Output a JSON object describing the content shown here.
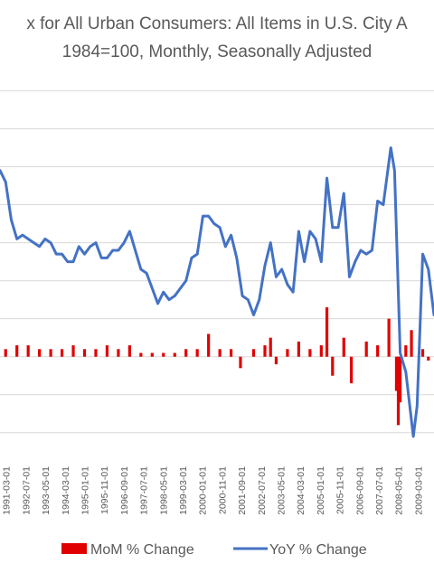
{
  "chart_data": {
    "type": "bar+line",
    "title_lines": [
      "x for All Urban Consumers: All Items in U.S. City A",
      "1984=100, Monthly, Seasonally Adjusted"
    ],
    "xlabel": "",
    "ylabel": "",
    "grid": true,
    "legend_position": "bottom",
    "ylim": [
      -2.6,
      7.2
    ],
    "x_tick_labels": [
      "1991-03-01",
      "1992-07-01",
      "1993-05-01",
      "1994-03-01",
      "1995-01-01",
      "1995-11-01",
      "1996-09-01",
      "1997-07-01",
      "1998-05-01",
      "1999-03-01",
      "2000-01-01",
      "2000-11-01",
      "2001-09-01",
      "2002-07-01",
      "2003-05-01",
      "2004-03-01",
      "2005-01-01",
      "2005-11-01",
      "2006-09-01",
      "2007-07-01",
      "2008-05-01",
      "2009-03-01",
      "2010-01-01"
    ],
    "x_start": "1991-03",
    "x_end": "2010-06",
    "series": [
      {
        "name": "YoY % Change",
        "type": "line",
        "color": "#4472c4",
        "points": [
          [
            "1991-03",
            4.9
          ],
          [
            "1991-06",
            4.6
          ],
          [
            "1991-09",
            3.6
          ],
          [
            "1991-12",
            3.1
          ],
          [
            "1992-03",
            3.2
          ],
          [
            "1992-06",
            3.1
          ],
          [
            "1992-09",
            3.0
          ],
          [
            "1992-12",
            2.9
          ],
          [
            "1993-03",
            3.1
          ],
          [
            "1993-06",
            3.0
          ],
          [
            "1993-09",
            2.7
          ],
          [
            "1993-12",
            2.7
          ],
          [
            "1994-03",
            2.5
          ],
          [
            "1994-06",
            2.5
          ],
          [
            "1994-09",
            2.9
          ],
          [
            "1994-12",
            2.7
          ],
          [
            "1995-03",
            2.9
          ],
          [
            "1995-06",
            3.0
          ],
          [
            "1995-09",
            2.6
          ],
          [
            "1995-12",
            2.6
          ],
          [
            "1996-03",
            2.8
          ],
          [
            "1996-06",
            2.8
          ],
          [
            "1996-09",
            3.0
          ],
          [
            "1996-12",
            3.3
          ],
          [
            "1997-03",
            2.8
          ],
          [
            "1997-06",
            2.3
          ],
          [
            "1997-09",
            2.2
          ],
          [
            "1997-12",
            1.8
          ],
          [
            "1998-03",
            1.4
          ],
          [
            "1998-06",
            1.7
          ],
          [
            "1998-09",
            1.5
          ],
          [
            "1998-12",
            1.6
          ],
          [
            "1999-03",
            1.8
          ],
          [
            "1999-06",
            2.0
          ],
          [
            "1999-09",
            2.6
          ],
          [
            "1999-12",
            2.7
          ],
          [
            "2000-03",
            3.7
          ],
          [
            "2000-06",
            3.7
          ],
          [
            "2000-09",
            3.5
          ],
          [
            "2000-12",
            3.4
          ],
          [
            "2001-03",
            2.9
          ],
          [
            "2001-06",
            3.2
          ],
          [
            "2001-09",
            2.6
          ],
          [
            "2001-12",
            1.6
          ],
          [
            "2002-03",
            1.5
          ],
          [
            "2002-06",
            1.1
          ],
          [
            "2002-09",
            1.5
          ],
          [
            "2002-12",
            2.4
          ],
          [
            "2003-03",
            3.0
          ],
          [
            "2003-06",
            2.1
          ],
          [
            "2003-09",
            2.3
          ],
          [
            "2003-12",
            1.9
          ],
          [
            "2004-03",
            1.7
          ],
          [
            "2004-06",
            3.3
          ],
          [
            "2004-09",
            2.5
          ],
          [
            "2004-12",
            3.3
          ],
          [
            "2005-03",
            3.1
          ],
          [
            "2005-06",
            2.5
          ],
          [
            "2005-09",
            4.7
          ],
          [
            "2005-12",
            3.4
          ],
          [
            "2006-03",
            3.4
          ],
          [
            "2006-06",
            4.3
          ],
          [
            "2006-09",
            2.1
          ],
          [
            "2006-12",
            2.5
          ],
          [
            "2007-03",
            2.8
          ],
          [
            "2007-06",
            2.7
          ],
          [
            "2007-09",
            2.8
          ],
          [
            "2007-12",
            4.1
          ],
          [
            "2008-03",
            4.0
          ],
          [
            "2008-07",
            5.5
          ],
          [
            "2008-09",
            4.9
          ],
          [
            "2008-12",
            0.1
          ],
          [
            "2009-03",
            -0.4
          ],
          [
            "2009-07",
            -2.1
          ],
          [
            "2009-09",
            -1.3
          ],
          [
            "2009-12",
            2.7
          ],
          [
            "2010-03",
            2.3
          ],
          [
            "2010-06",
            1.1
          ]
        ]
      },
      {
        "name": "MoM % Change",
        "type": "bar",
        "color": "#e00000",
        "points": [
          [
            "1991-06",
            0.2
          ],
          [
            "1991-12",
            0.3
          ],
          [
            "1992-06",
            0.3
          ],
          [
            "1992-12",
            0.2
          ],
          [
            "1993-06",
            0.2
          ],
          [
            "1993-12",
            0.2
          ],
          [
            "1994-06",
            0.3
          ],
          [
            "1994-12",
            0.2
          ],
          [
            "1995-06",
            0.2
          ],
          [
            "1995-12",
            0.3
          ],
          [
            "1996-06",
            0.2
          ],
          [
            "1996-12",
            0.3
          ],
          [
            "1997-06",
            0.1
          ],
          [
            "1997-12",
            0.1
          ],
          [
            "1998-06",
            0.1
          ],
          [
            "1998-12",
            0.1
          ],
          [
            "1999-06",
            0.2
          ],
          [
            "1999-12",
            0.2
          ],
          [
            "2000-06",
            0.6
          ],
          [
            "2000-12",
            0.2
          ],
          [
            "2001-06",
            0.2
          ],
          [
            "2001-11",
            -0.3
          ],
          [
            "2002-06",
            0.2
          ],
          [
            "2002-12",
            0.3
          ],
          [
            "2003-03",
            0.5
          ],
          [
            "2003-06",
            -0.2
          ],
          [
            "2003-12",
            0.2
          ],
          [
            "2004-06",
            0.4
          ],
          [
            "2004-12",
            0.2
          ],
          [
            "2005-06",
            0.3
          ],
          [
            "2005-09",
            1.3
          ],
          [
            "2005-12",
            -0.5
          ],
          [
            "2006-06",
            0.5
          ],
          [
            "2006-10",
            -0.7
          ],
          [
            "2007-06",
            0.4
          ],
          [
            "2007-12",
            0.3
          ],
          [
            "2008-06",
            1.0
          ],
          [
            "2008-10",
            -0.9
          ],
          [
            "2008-11",
            -1.8
          ],
          [
            "2008-12",
            -1.2
          ],
          [
            "2009-03",
            0.3
          ],
          [
            "2009-06",
            0.7
          ],
          [
            "2009-12",
            0.2
          ],
          [
            "2010-03",
            -0.1
          ]
        ]
      }
    ]
  }
}
